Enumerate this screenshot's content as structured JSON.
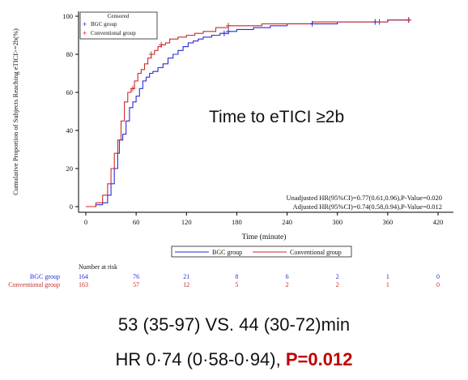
{
  "chart_data": {
    "type": "line",
    "ylabel": "Cumulative Proportion of Subjects Reaching eTICI>=2b(%)",
    "xlabel": "Time (minute)",
    "x_ticks": [
      0,
      60,
      120,
      180,
      240,
      300,
      360,
      420
    ],
    "y_ticks": [
      0,
      20,
      40,
      60,
      80,
      100
    ],
    "xlim": [
      0,
      420
    ],
    "ylim": [
      0,
      100
    ],
    "grid": false,
    "annotation": "Time to eTICI ≥2b",
    "stats": [
      "Unadjusted HR(95%CI)=0.77(0.61,0.96),P-Value=0.020",
      "Adjusted HR(95%CI)=0.74(0.58,0.94),P-Value=0.012"
    ],
    "legend_box": {
      "title": "Censored",
      "items": [
        "BGC group",
        "Conventional group"
      ]
    },
    "legend_bottom": [
      "BGC group",
      "Conventional group"
    ],
    "series": [
      {
        "name": "BGC group",
        "color": "#2b2bd6",
        "x": [
          0,
          8,
          12,
          20,
          26,
          30,
          34,
          38,
          40,
          44,
          48,
          52,
          56,
          60,
          64,
          68,
          72,
          76,
          80,
          86,
          92,
          98,
          104,
          110,
          116,
          122,
          128,
          134,
          140,
          150,
          160,
          170,
          180,
          200,
          220,
          240,
          260,
          280,
          300,
          330,
          360,
          385
        ],
        "y": [
          0,
          0,
          1,
          2,
          6,
          12,
          20,
          28,
          35,
          38,
          45,
          52,
          55,
          58,
          62,
          66,
          68,
          70,
          71,
          73,
          75,
          78,
          80,
          82,
          84,
          86,
          87,
          88,
          89,
          90,
          91,
          92,
          93,
          94,
          95,
          96,
          96,
          96,
          97,
          97,
          98,
          98
        ],
        "censored_x": [
          165,
          170,
          270,
          345,
          350,
          385
        ]
      },
      {
        "name": "Conventional group",
        "color": "#cc2a2a",
        "x": [
          0,
          8,
          12,
          20,
          26,
          30,
          34,
          38,
          42,
          46,
          50,
          54,
          58,
          62,
          66,
          70,
          74,
          78,
          82,
          86,
          90,
          95,
          100,
          110,
          120,
          130,
          140,
          155,
          170,
          190,
          210,
          240,
          270,
          300,
          330,
          360,
          385
        ],
        "y": [
          0,
          0,
          2,
          6,
          12,
          20,
          28,
          35,
          45,
          55,
          60,
          62,
          66,
          70,
          72,
          75,
          78,
          80,
          82,
          84,
          85,
          86,
          88,
          89,
          90,
          91,
          92,
          94,
          95,
          95,
          96,
          96,
          97,
          97,
          97,
          98,
          98
        ],
        "censored_x": [
          56,
          78,
          90,
          170,
          350,
          385
        ]
      }
    ],
    "risk_table": {
      "title": "Number at risk",
      "times": [
        0,
        60,
        120,
        180,
        240,
        300,
        360,
        420
      ],
      "rows": [
        {
          "label": "BGC group",
          "color": "#2b2bd6",
          "values": [
            "164",
            "76",
            "21",
            "8",
            "6",
            "2",
            "1",
            "0"
          ]
        },
        {
          "label": "Conventional group",
          "color": "#cc2a2a",
          "values": [
            "163",
            "57",
            "12",
            "5",
            "2",
            "2",
            "1",
            "0"
          ]
        }
      ]
    }
  },
  "summary": {
    "line1": "53 (35-97) VS. 44 (30-72)min",
    "line2_prefix": "HR 0·74 (0·58-0·94), ",
    "line2_pvalue": "P=0.012",
    "pvalue_color": "#c00000"
  }
}
